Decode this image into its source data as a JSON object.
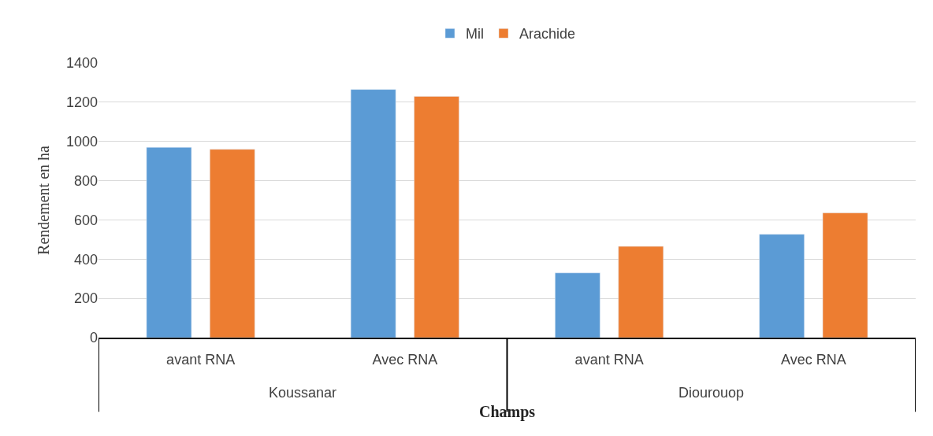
{
  "chart_data": {
    "type": "bar",
    "xlabel": "Champs",
    "ylabel": "Rendement en ha",
    "categories": [
      "avant RNA",
      "Avec RNA",
      "avant RNA",
      "Avec RNA"
    ],
    "series": [
      {
        "name": "Mil",
        "color": "#5b9bd5",
        "values": [
          970,
          1265,
          330,
          527
        ]
      },
      {
        "name": "Arachide",
        "color": "#ed7d31",
        "values": [
          960,
          1230,
          465,
          636
        ]
      }
    ],
    "annotations": [
      "Koussanar",
      "Diourouop"
    ],
    "ylim": [
      0,
      1400
    ],
    "yticks": [
      0,
      200,
      400,
      600,
      800,
      1000,
      1200,
      1400
    ],
    "grid": "y",
    "legend": "top"
  }
}
